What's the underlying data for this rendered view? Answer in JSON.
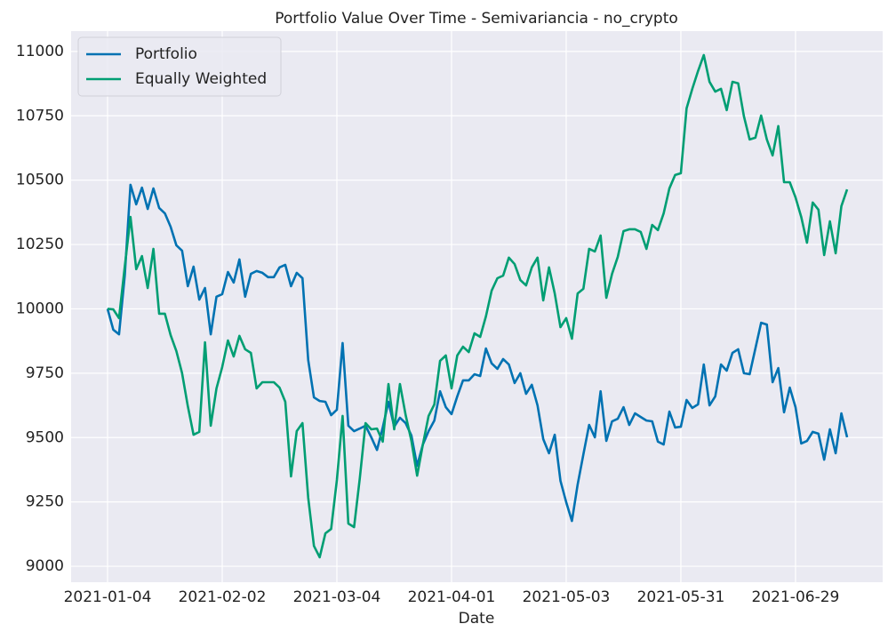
{
  "chart_data": {
    "type": "line",
    "title": "Portfolio Value Over Time - Semivariancia - no_crypto",
    "xlabel": "Date",
    "categories": [
      "2021-01-04",
      null,
      null,
      null,
      null,
      null,
      null,
      null,
      null,
      null,
      null,
      null,
      null,
      null,
      null,
      null,
      null,
      null,
      null,
      null,
      "2021-02-02",
      null,
      null,
      null,
      null,
      null,
      null,
      null,
      null,
      null,
      null,
      null,
      null,
      null,
      null,
      null,
      null,
      null,
      null,
      null,
      "2021-03-04",
      null,
      null,
      null,
      null,
      null,
      null,
      null,
      null,
      null,
      null,
      null,
      null,
      null,
      null,
      null,
      null,
      null,
      null,
      null,
      "2021-04-01",
      null,
      null,
      null,
      null,
      null,
      null,
      null,
      null,
      null,
      null,
      null,
      null,
      null,
      null,
      null,
      null,
      null,
      null,
      null,
      "2021-05-03",
      null,
      null,
      null,
      null,
      null,
      null,
      null,
      null,
      null,
      null,
      null,
      null,
      null,
      null,
      null,
      null,
      null,
      null,
      null,
      "2021-05-31",
      null,
      null,
      null,
      null,
      null,
      null,
      null,
      null,
      null,
      null,
      null,
      null,
      null,
      null,
      null,
      null,
      null,
      null,
      null,
      "2021-06-29",
      null,
      null,
      null,
      null,
      null,
      null,
      null,
      null,
      null
    ],
    "series": [
      {
        "name": "Portfolio",
        "color": "#0072b2",
        "values": [
          10000,
          9919,
          9901,
          10129,
          10482,
          10406,
          10471,
          10388,
          10468,
          10392,
          10371,
          10319,
          10247,
          10226,
          10088,
          10164,
          10036,
          10081,
          9901,
          10047,
          10057,
          10143,
          10102,
          10192,
          10047,
          10136,
          10147,
          10140,
          10123,
          10123,
          10161,
          10171,
          10088,
          10140,
          10119,
          9801,
          9656,
          9642,
          9639,
          9587,
          9608,
          9867,
          9546,
          9525,
          9535,
          9546,
          9501,
          9452,
          9539,
          9639,
          9542,
          9577,
          9556,
          9508,
          9390,
          9473,
          9525,
          9566,
          9680,
          9618,
          9591,
          9660,
          9722,
          9722,
          9746,
          9739,
          9846,
          9788,
          9767,
          9805,
          9784,
          9712,
          9750,
          9670,
          9705,
          9625,
          9494,
          9439,
          9511,
          9332,
          9249,
          9176,
          9318,
          9435,
          9549,
          9501,
          9680,
          9487,
          9563,
          9573,
          9618,
          9549,
          9594,
          9580,
          9566,
          9563,
          9484,
          9473,
          9601,
          9539,
          9542,
          9646,
          9615,
          9629,
          9784,
          9625,
          9660,
          9784,
          9760,
          9829,
          9843,
          9750,
          9746,
          9846,
          9946,
          9939,
          9715,
          9770,
          9598,
          9694,
          9618,
          9477,
          9487,
          9522,
          9515,
          9414,
          9532,
          9439,
          9594,
          9501
        ]
      },
      {
        "name": "Equally Weighted",
        "color": "#009e73",
        "values": [
          10000,
          9998,
          9964,
          10164,
          10357,
          10154,
          10205,
          10081,
          10233,
          9981,
          9981,
          9898,
          9836,
          9750,
          9622,
          9511,
          9522,
          9870,
          9546,
          9691,
          9774,
          9877,
          9815,
          9895,
          9843,
          9829,
          9691,
          9715,
          9715,
          9715,
          9694,
          9639,
          9349,
          9525,
          9556,
          9266,
          9079,
          9035,
          9128,
          9145,
          9335,
          9584,
          9166,
          9152,
          9342,
          9556,
          9532,
          9535,
          9484,
          9708,
          9532,
          9708,
          9587,
          9487,
          9352,
          9473,
          9584,
          9629,
          9798,
          9819,
          9691,
          9819,
          9853,
          9832,
          9905,
          9891,
          9971,
          10071,
          10119,
          10129,
          10199,
          10174,
          10112,
          10091,
          10161,
          10199,
          10033,
          10161,
          10060,
          9929,
          9964,
          9884,
          10060,
          10078,
          10233,
          10223,
          10285,
          10043,
          10136,
          10202,
          10302,
          10309,
          10309,
          10299,
          10233,
          10326,
          10306,
          10371,
          10468,
          10520,
          10527,
          10779,
          10855,
          10924,
          10986,
          10882,
          10844,
          10855,
          10772,
          10882,
          10876,
          10748,
          10658,
          10665,
          10751,
          10658,
          10596,
          10710,
          10492,
          10492,
          10433,
          10357,
          10257,
          10413,
          10385,
          10209,
          10340,
          10216,
          10399,
          10464
        ]
      }
    ],
    "ylim": [
      8938,
      11079
    ],
    "yticks": [
      9000,
      9250,
      9500,
      9750,
      10000,
      10250,
      10500,
      10750,
      11000
    ],
    "grid": true,
    "legend": "upper left"
  }
}
